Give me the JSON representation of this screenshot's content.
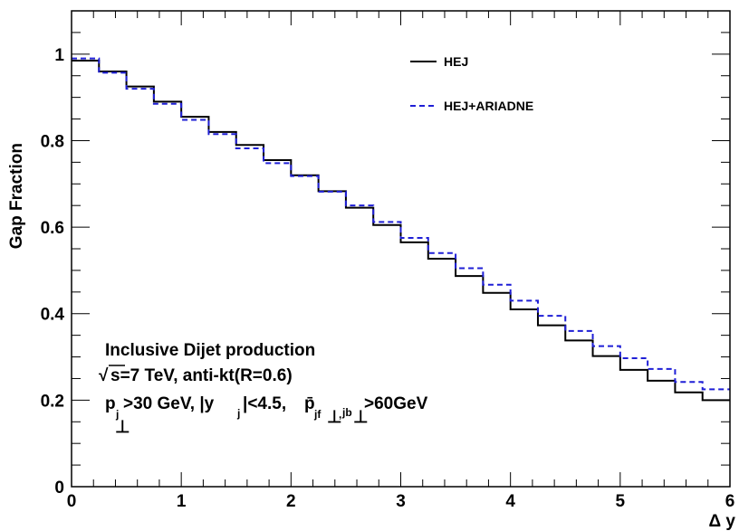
{
  "chart_data": {
    "type": "line",
    "step": true,
    "xlabel": "Δ y",
    "ylabel": "Gap Fraction",
    "xlim": [
      0,
      6
    ],
    "ylim": [
      0,
      1.1
    ],
    "x_ticks": [
      0,
      1,
      2,
      3,
      4,
      5,
      6
    ],
    "y_ticks": [
      0,
      0.2,
      0.4,
      0.6,
      0.8,
      1
    ],
    "x_tick_labels": [
      "0",
      "1",
      "2",
      "3",
      "4",
      "5",
      "6"
    ],
    "y_tick_labels": [
      "0",
      "0.2",
      "0.4",
      "0.6",
      "0.8",
      "1"
    ],
    "grid": false,
    "legend_position": "top-right",
    "bin_edges": [
      0,
      0.25,
      0.5,
      0.75,
      1.0,
      1.25,
      1.5,
      1.75,
      2.0,
      2.25,
      2.5,
      2.75,
      3.0,
      3.25,
      3.5,
      3.75,
      4.0,
      4.25,
      4.5,
      4.75,
      5.0,
      5.25,
      5.5,
      5.75,
      6.0
    ],
    "series": [
      {
        "name": "HEJ",
        "color": "#000000",
        "dash": "solid",
        "values": [
          0.985,
          0.96,
          0.925,
          0.89,
          0.855,
          0.82,
          0.79,
          0.755,
          0.72,
          0.683,
          0.645,
          0.605,
          0.565,
          0.527,
          0.487,
          0.448,
          0.41,
          0.373,
          0.338,
          0.302,
          0.27,
          0.245,
          0.218,
          0.2
        ]
      },
      {
        "name": "HEJ+ARIADNE",
        "color": "#1f1fd6",
        "dash": "dashed",
        "values": [
          0.99,
          0.957,
          0.92,
          0.885,
          0.848,
          0.815,
          0.782,
          0.748,
          0.718,
          0.682,
          0.65,
          0.612,
          0.575,
          0.54,
          0.505,
          0.467,
          0.43,
          0.395,
          0.36,
          0.325,
          0.297,
          0.272,
          0.242,
          0.225
        ]
      }
    ],
    "annotations": {
      "line1": "Inclusive Dijet production",
      "sqrt_symbol": "√",
      "line2": "s=7 TeV, anti-kt(R=0.6)",
      "line3_a": "p",
      "line3_a_sub": "j",
      "line3_a_perp": "⊥",
      "line3_b": ">30 GeV, |y",
      "line3_b_sub": "j",
      "line3_c": "|<4.5, ",
      "line3_pbar": "p̄",
      "line3_pbar_sub": "jf",
      "line3_perp1": "⊥",
      "line3_comma": ",",
      "line3_jb_sub": "jb",
      "line3_perp2": "⊥",
      "line3_d": ">60GeV"
    }
  }
}
